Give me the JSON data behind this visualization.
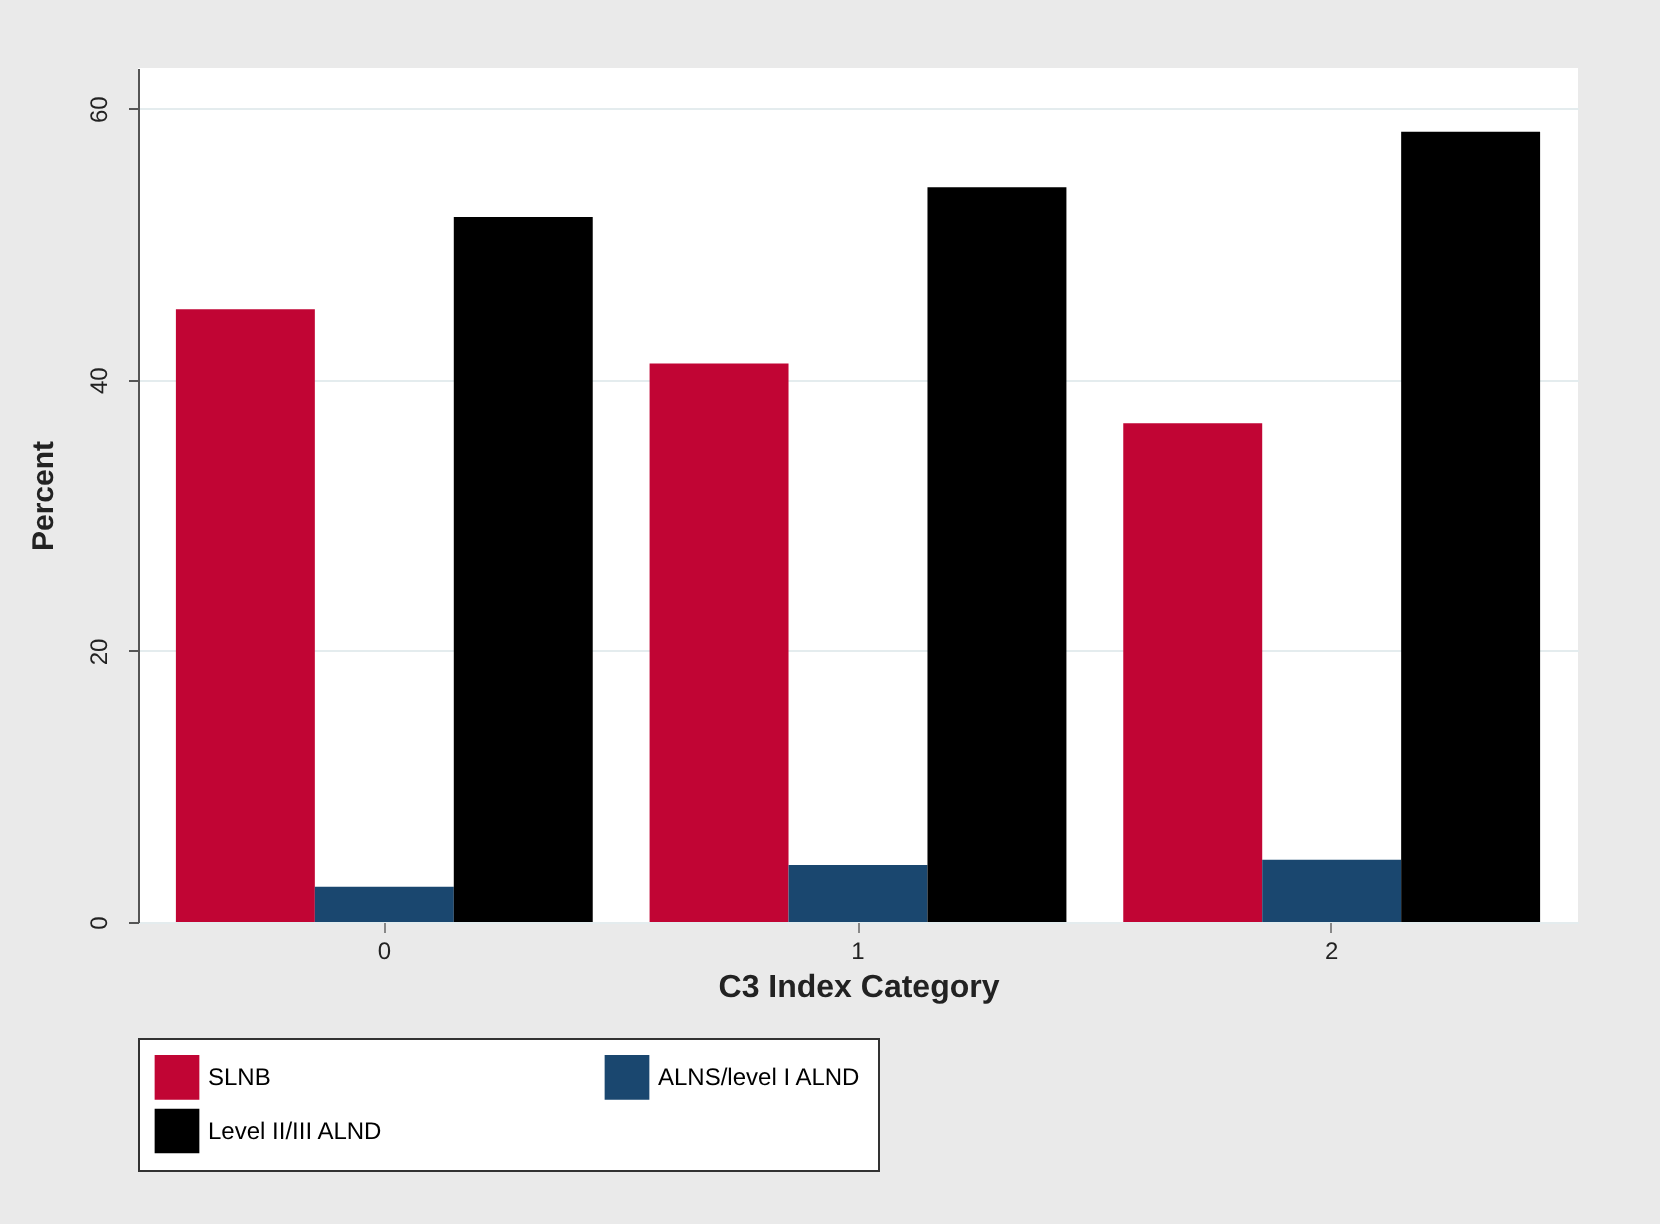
{
  "chart_data": {
    "type": "bar",
    "xlabel": "C3 Index Category",
    "ylabel": "Percent",
    "categories": [
      "0",
      "1",
      "2"
    ],
    "series": [
      {
        "name": "SLNB",
        "color": "#c10534",
        "values": [
          45.2,
          41.2,
          36.8
        ]
      },
      {
        "name": "ALNS/level I ALND",
        "color": "#1a476f",
        "values": [
          2.6,
          4.2,
          4.6
        ]
      },
      {
        "name": "Level II/III ALND",
        "color": "#000000",
        "values": [
          52.0,
          54.2,
          58.3
        ]
      }
    ],
    "ylim": [
      0,
      63
    ],
    "yticks": [
      0,
      20,
      40,
      60
    ],
    "grid": "y",
    "legend": "bottom"
  }
}
